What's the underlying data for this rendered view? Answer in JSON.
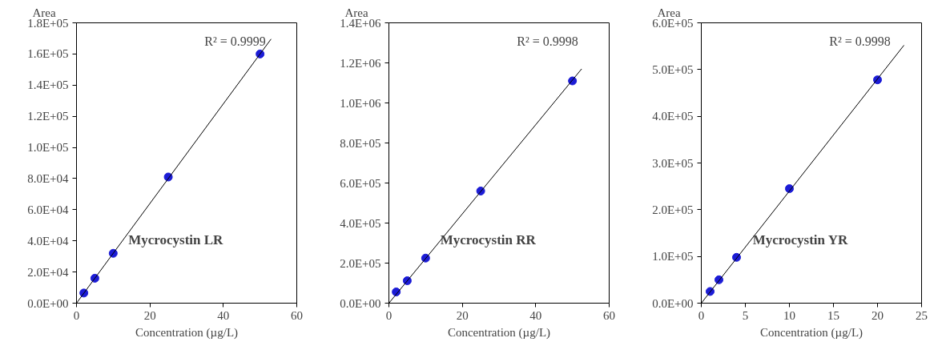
{
  "chart_data": [
    {
      "type": "scatter",
      "ylabel": "Area",
      "xlabel": "Concentration (µg/L)",
      "annotations": [
        "R² = 0.9999",
        "Mycrocystin LR"
      ],
      "grid": false,
      "xlim": [
        0,
        60
      ],
      "xticks": [
        0,
        20,
        40,
        60
      ],
      "ylim": [
        0,
        180000
      ],
      "yticks": [
        {
          "value": 0,
          "label": "0.0E+00"
        },
        {
          "value": 20000,
          "label": "2.0E+04"
        },
        {
          "value": 40000,
          "label": "4.0E+04"
        },
        {
          "value": 60000,
          "label": "6.0E+04"
        },
        {
          "value": 80000,
          "label": "8.0E+04"
        },
        {
          "value": 100000,
          "label": "1.0E+05"
        },
        {
          "value": 120000,
          "label": "1.2E+05"
        },
        {
          "value": 140000,
          "label": "1.4E+05"
        },
        {
          "value": 160000,
          "label": "1.6E+05"
        },
        {
          "value": 180000,
          "label": "1.8E+05"
        }
      ],
      "series": [
        {
          "marker": "circle",
          "color": "#1c1cd6",
          "x": [
            2,
            5,
            10,
            25,
            50
          ],
          "values": [
            6500,
            16000,
            32000,
            81000,
            160000
          ]
        },
        {
          "type": "line",
          "marker": "none",
          "color": "#000000",
          "x": [
            0,
            53
          ],
          "values": [
            0,
            169600
          ]
        }
      ]
    },
    {
      "type": "scatter",
      "ylabel": "Area",
      "xlabel": "Concentration (µg/L)",
      "annotations": [
        "R² = 0.9998",
        "Mycrocystin RR"
      ],
      "grid": false,
      "xlim": [
        0,
        60
      ],
      "xticks": [
        0,
        20,
        40,
        60
      ],
      "ylim": [
        0,
        1400000
      ],
      "yticks": [
        {
          "value": 0,
          "label": "0.0E+00"
        },
        {
          "value": 200000,
          "label": "2.0E+05"
        },
        {
          "value": 400000,
          "label": "4.0E+05"
        },
        {
          "value": 600000,
          "label": "6.0E+05"
        },
        {
          "value": 800000,
          "label": "8.0E+05"
        },
        {
          "value": 1000000,
          "label": "1.0E+06"
        },
        {
          "value": 1200000,
          "label": "1.2E+06"
        },
        {
          "value": 1400000,
          "label": "1.4E+06"
        }
      ],
      "series": [
        {
          "marker": "circle",
          "color": "#1c1cd6",
          "x": [
            2,
            5,
            10,
            25,
            50
          ],
          "values": [
            56000,
            112000,
            225000,
            560000,
            1110000
          ]
        },
        {
          "type": "line",
          "marker": "none",
          "color": "#000000",
          "x": [
            0,
            52.5
          ],
          "values": [
            0,
            1170000
          ]
        }
      ]
    },
    {
      "type": "scatter",
      "ylabel": "Area",
      "xlabel": "Concentration (µg/L)",
      "annotations": [
        "R² = 0.9998",
        "Mycrocystin YR"
      ],
      "grid": false,
      "xlim": [
        0,
        25
      ],
      "xticks": [
        0,
        5,
        10,
        15,
        20,
        25
      ],
      "ylim": [
        0,
        600000
      ],
      "yticks": [
        {
          "value": 0,
          "label": "0.0E+00"
        },
        {
          "value": 100000,
          "label": "1.0E+05"
        },
        {
          "value": 200000,
          "label": "2.0E+05"
        },
        {
          "value": 300000,
          "label": "3.0E+05"
        },
        {
          "value": 400000,
          "label": "4.0E+05"
        },
        {
          "value": 500000,
          "label": "5.0E+05"
        },
        {
          "value": 600000,
          "label": "6.0E+05"
        }
      ],
      "series": [
        {
          "marker": "circle",
          "color": "#1c1cd6",
          "x": [
            1,
            2,
            4,
            10,
            20
          ],
          "values": [
            25000,
            50000,
            98000,
            245000,
            478000
          ]
        },
        {
          "type": "line",
          "marker": "none",
          "color": "#000000",
          "x": [
            0,
            23
          ],
          "values": [
            0,
            552000
          ]
        }
      ]
    }
  ]
}
